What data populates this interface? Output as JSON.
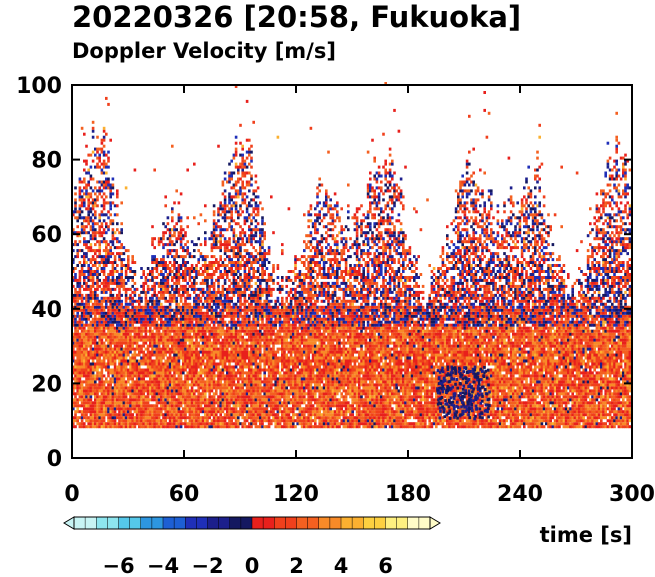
{
  "chart_data": {
    "type": "heatmap",
    "title": "20220326 [20:58, Fukuoka]",
    "subtitle": "Doppler Velocity [m/s]",
    "xlabel": "time [s]",
    "ylabel": "",
    "xlim": [
      0,
      300
    ],
    "ylim": [
      0,
      100
    ],
    "x_ticks": [
      0,
      60,
      120,
      180,
      240,
      300
    ],
    "y_ticks": [
      0,
      20,
      40,
      60,
      80,
      100
    ],
    "data_y_range": [
      8,
      100
    ],
    "colorbar": {
      "range": [
        -8,
        8
      ],
      "ticks": [
        -6,
        -4,
        -2,
        0,
        2,
        4,
        6
      ],
      "tick_labels": [
        "−6",
        "−4",
        "−2",
        "0",
        "2",
        "4",
        "6"
      ],
      "negative_colors": [
        "#c8f4f4",
        "#8ee6ef",
        "#55c8ea",
        "#2d96e0",
        "#1d5fd4",
        "#1f2fb8",
        "#1c1f8c",
        "#141860"
      ],
      "positive_colors": [
        "#e8201c",
        "#f0401c",
        "#f46020",
        "#f88a28",
        "#fbb030",
        "#fdd040",
        "#fef080",
        "#fffcc8"
      ]
    },
    "description_pattern": {
      "dense_red_layer_top_m": 40,
      "negative_blue_band_m": [
        40,
        65
      ],
      "sparse_echo_top_m": 100
    }
  }
}
